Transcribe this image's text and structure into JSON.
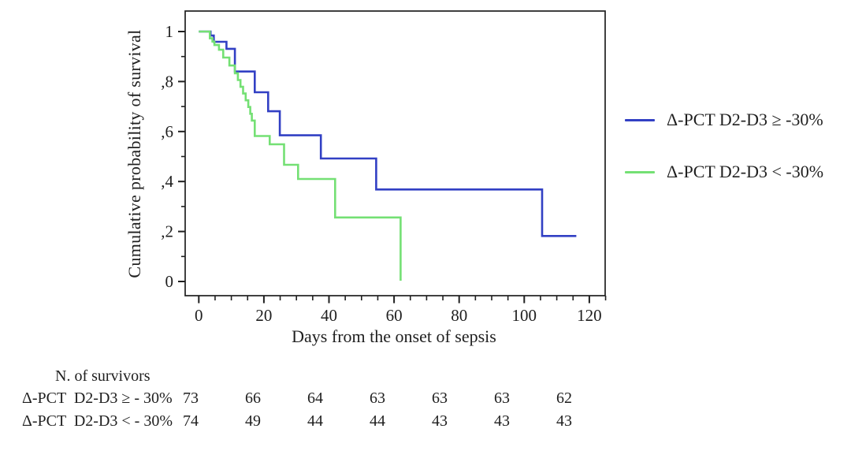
{
  "chart_data": {
    "type": "line",
    "subtype": "kaplan-meier-step",
    "title": "",
    "xlabel": "Days from the onset of sepsis",
    "ylabel": "Cumulative probability of survival",
    "xlim": [
      -4,
      125
    ],
    "ylim": [
      -0.05,
      1.08
    ],
    "grid": "off",
    "legend_position": "right",
    "x_major_ticks": [
      0,
      20,
      40,
      60,
      80,
      100,
      120
    ],
    "x_minor_step": 5,
    "y_major_ticks": [
      0,
      0.2,
      0.4,
      0.6,
      0.8,
      1
    ],
    "y_tick_labels": [
      "0",
      ",2",
      ",4",
      ",6",
      ",8",
      "1"
    ],
    "y_minor_ticks": [
      0.1,
      0.3,
      0.5,
      0.7,
      0.9
    ],
    "series": [
      {
        "id": "pct-ge-30",
        "name": "Δ-PCT D2-D3 ≥ -30%",
        "color": "#3240c4",
        "end_day": 116,
        "steps": [
          [
            0,
            1.0
          ],
          [
            3.6,
            0.984
          ],
          [
            4.6,
            0.959
          ],
          [
            8.5,
            0.931
          ],
          [
            11.1,
            0.84
          ],
          [
            17.2,
            0.757
          ],
          [
            21.3,
            0.681
          ],
          [
            24.9,
            0.585
          ],
          [
            37.5,
            0.492
          ],
          [
            54.5,
            0.368
          ],
          [
            105.5,
            0.182
          ]
        ]
      },
      {
        "id": "pct-lt-30",
        "name": "Δ-PCT D2-D3 < -30%",
        "color": "#74e074",
        "end_day": 62,
        "steps": [
          [
            0,
            1.0
          ],
          [
            3.4,
            0.973
          ],
          [
            4.2,
            0.96
          ],
          [
            4.8,
            0.946
          ],
          [
            6.2,
            0.927
          ],
          [
            7.5,
            0.896
          ],
          [
            9.4,
            0.864
          ],
          [
            11.1,
            0.833
          ],
          [
            12.0,
            0.806
          ],
          [
            12.8,
            0.779
          ],
          [
            13.6,
            0.752
          ],
          [
            14.4,
            0.725
          ],
          [
            15.2,
            0.698
          ],
          [
            15.8,
            0.671
          ],
          [
            16.3,
            0.644
          ],
          [
            17.2,
            0.582
          ],
          [
            21.8,
            0.549
          ],
          [
            26.2,
            0.467
          ],
          [
            30.5,
            0.41
          ],
          [
            41.9,
            0.256
          ],
          [
            62,
            0.003
          ]
        ]
      }
    ]
  },
  "legend": {
    "items": [
      {
        "label": "Δ-PCT D2-D3 ≥ -30%",
        "color": "#3240c4"
      },
      {
        "label": "Δ-PCT D2-D3 < -30%",
        "color": "#74e074"
      }
    ]
  },
  "risk_table": {
    "header": "N. of survivors",
    "columns_days": [
      0,
      20,
      40,
      60,
      80,
      100,
      120
    ],
    "rows": [
      {
        "label": "Δ-PCT  D2-D3 ≥ - 30%",
        "values": [
          73,
          66,
          64,
          63,
          63,
          63,
          62
        ]
      },
      {
        "label": "Δ-PCT  D2-D3 < - 30%",
        "values": [
          74,
          49,
          44,
          44,
          43,
          43,
          43
        ]
      }
    ]
  },
  "colors": {
    "axis_ink": "#1f1f1f",
    "background": "#ffffff"
  }
}
